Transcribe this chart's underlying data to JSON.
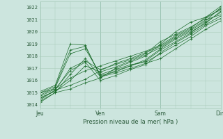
{
  "title": "Pression niveau de la mer( hPa )",
  "ylabel_values": [
    1014,
    1015,
    1016,
    1017,
    1018,
    1019,
    1020,
    1021,
    1022
  ],
  "ylim": [
    1013.7,
    1022.5
  ],
  "xlim": [
    0,
    72
  ],
  "day_ticks": [
    0,
    24,
    48,
    72
  ],
  "day_labels": [
    "Jeu",
    "Ven",
    "Sam",
    "Dim"
  ],
  "bg_color": "#cce5de",
  "grid_color": "#aaccbb",
  "line_color": "#1a6b2a",
  "marker_color": "#1a6b2a",
  "text_color": "#2a5a3a",
  "series": [
    [
      0,
      1014.2,
      6,
      1015.0,
      12,
      1015.3,
      18,
      1015.8,
      24,
      1016.2,
      30,
      1017.0,
      36,
      1017.5,
      42,
      1018.0,
      48,
      1019.0,
      54,
      1020.0,
      60,
      1020.8,
      66,
      1021.2,
      72,
      1021.8
    ],
    [
      0,
      1014.5,
      6,
      1015.2,
      12,
      1015.6,
      18,
      1016.1,
      24,
      1016.8,
      30,
      1017.4,
      36,
      1017.8,
      42,
      1018.3,
      48,
      1018.8,
      54,
      1019.6,
      60,
      1020.2,
      66,
      1021.0,
      72,
      1021.4
    ],
    [
      0,
      1014.8,
      6,
      1015.4,
      12,
      1018.2,
      18,
      1018.6,
      24,
      1016.5,
      30,
      1016.9,
      36,
      1017.3,
      42,
      1017.5,
      48,
      1018.2,
      54,
      1018.9,
      60,
      1019.6,
      66,
      1020.5,
      72,
      1021.1
    ],
    [
      0,
      1015.0,
      6,
      1015.5,
      12,
      1018.5,
      18,
      1018.8,
      24,
      1016.4,
      30,
      1016.7,
      36,
      1017.2,
      42,
      1017.6,
      48,
      1018.5,
      54,
      1019.2,
      60,
      1019.9,
      66,
      1020.8,
      72,
      1021.6
    ],
    [
      0,
      1015.1,
      6,
      1015.6,
      12,
      1019.0,
      18,
      1018.9,
      24,
      1016.3,
      30,
      1016.6,
      36,
      1017.0,
      42,
      1017.4,
      48,
      1017.8,
      54,
      1018.6,
      60,
      1019.4,
      66,
      1020.2,
      72,
      1020.9
    ],
    [
      0,
      1015.0,
      6,
      1015.3,
      12,
      1016.8,
      18,
      1017.5,
      24,
      1016.0,
      30,
      1016.4,
      36,
      1016.9,
      42,
      1017.3,
      48,
      1018.3,
      54,
      1019.1,
      60,
      1019.8,
      66,
      1020.6,
      72,
      1021.3
    ],
    [
      0,
      1014.6,
      6,
      1015.1,
      12,
      1016.0,
      18,
      1017.2,
      24,
      1016.7,
      30,
      1017.1,
      36,
      1017.6,
      42,
      1018.1,
      48,
      1018.7,
      54,
      1019.5,
      60,
      1020.1,
      66,
      1020.9,
      72,
      1022.0
    ],
    [
      0,
      1014.3,
      6,
      1015.0,
      12,
      1016.5,
      18,
      1017.8,
      24,
      1016.3,
      30,
      1016.8,
      36,
      1017.2,
      42,
      1017.7,
      48,
      1018.6,
      54,
      1019.4,
      60,
      1020.0,
      66,
      1020.7,
      72,
      1021.7
    ],
    [
      0,
      1014.4,
      6,
      1015.2,
      12,
      1017.0,
      18,
      1017.6,
      24,
      1016.9,
      30,
      1017.3,
      36,
      1017.7,
      42,
      1018.2,
      48,
      1019.2,
      54,
      1019.8,
      60,
      1020.4,
      66,
      1021.1,
      72,
      1021.9
    ],
    [
      0,
      1014.7,
      6,
      1015.3,
      12,
      1016.2,
      18,
      1016.8,
      24,
      1017.2,
      30,
      1017.6,
      36,
      1018.0,
      42,
      1018.4,
      48,
      1018.9,
      54,
      1019.7,
      60,
      1020.3,
      66,
      1021.2,
      72,
      1022.1
    ]
  ]
}
